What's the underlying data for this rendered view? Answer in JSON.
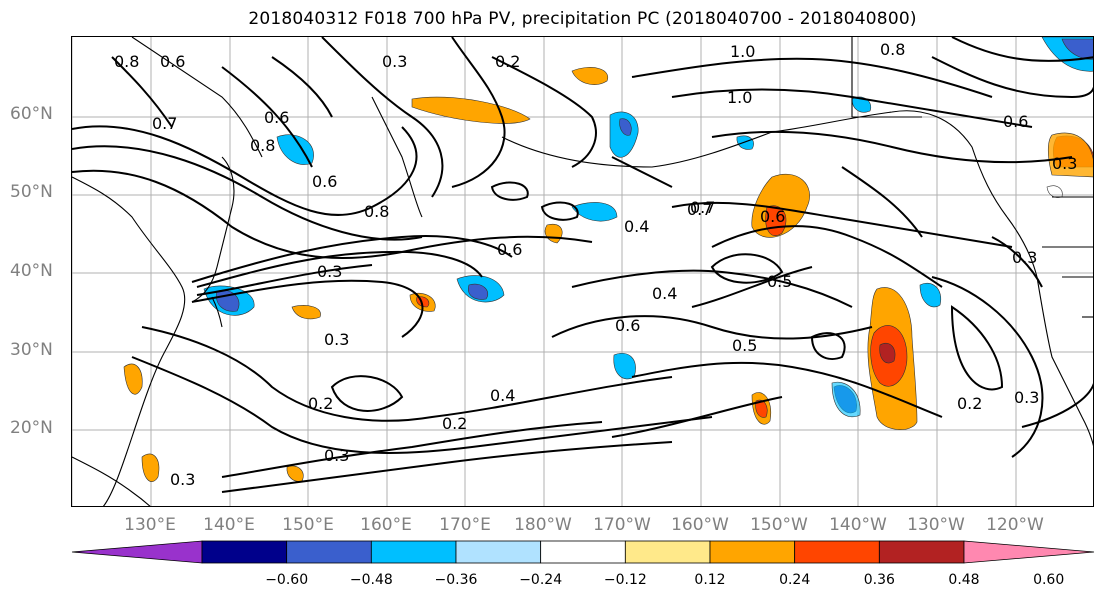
{
  "title": "2018040312 F018 700 hPa PV, precipitation PC (2018040700 - 2018040800)",
  "lat_labels": [
    "60°N",
    "50°N",
    "40°N",
    "30°N",
    "20°N"
  ],
  "lon_labels": [
    "130°E",
    "140°E",
    "150°E",
    "160°E",
    "170°E",
    "180°W",
    "170°W",
    "160°W",
    "150°W",
    "140°W",
    "130°W",
    "120°W"
  ],
  "contour_labels": [
    "0.8",
    "0.6",
    "0.3",
    "0.2",
    "1.0",
    "0.8",
    "1.0",
    "0.7",
    "0.8",
    "0.6",
    "0.6",
    "0.8",
    "0.3",
    "0.4",
    "0.6",
    "0.7",
    "0.6",
    "0.3",
    "0.4",
    "0.6",
    "0.5",
    "0.3",
    "0.2",
    "0.4",
    "0.2",
    "0.3",
    "0.3",
    "0.2",
    "0.3",
    "0.7",
    "0.5",
    "0.6",
    "0.3"
  ],
  "colorbar": {
    "ticks": [
      "−0.60",
      "−0.48",
      "−0.36",
      "−0.24",
      "−0.12",
      "0.12",
      "0.24",
      "0.36",
      "0.48",
      "0.60"
    ],
    "colors": [
      "#9932cc",
      "#00008b",
      "#3a5fcd",
      "#00bfff",
      "#b0e2ff",
      "#ffffff",
      "#ffe98a",
      "#ffa500",
      "#ff4500",
      "#b22222",
      "#ff88b0"
    ]
  }
}
